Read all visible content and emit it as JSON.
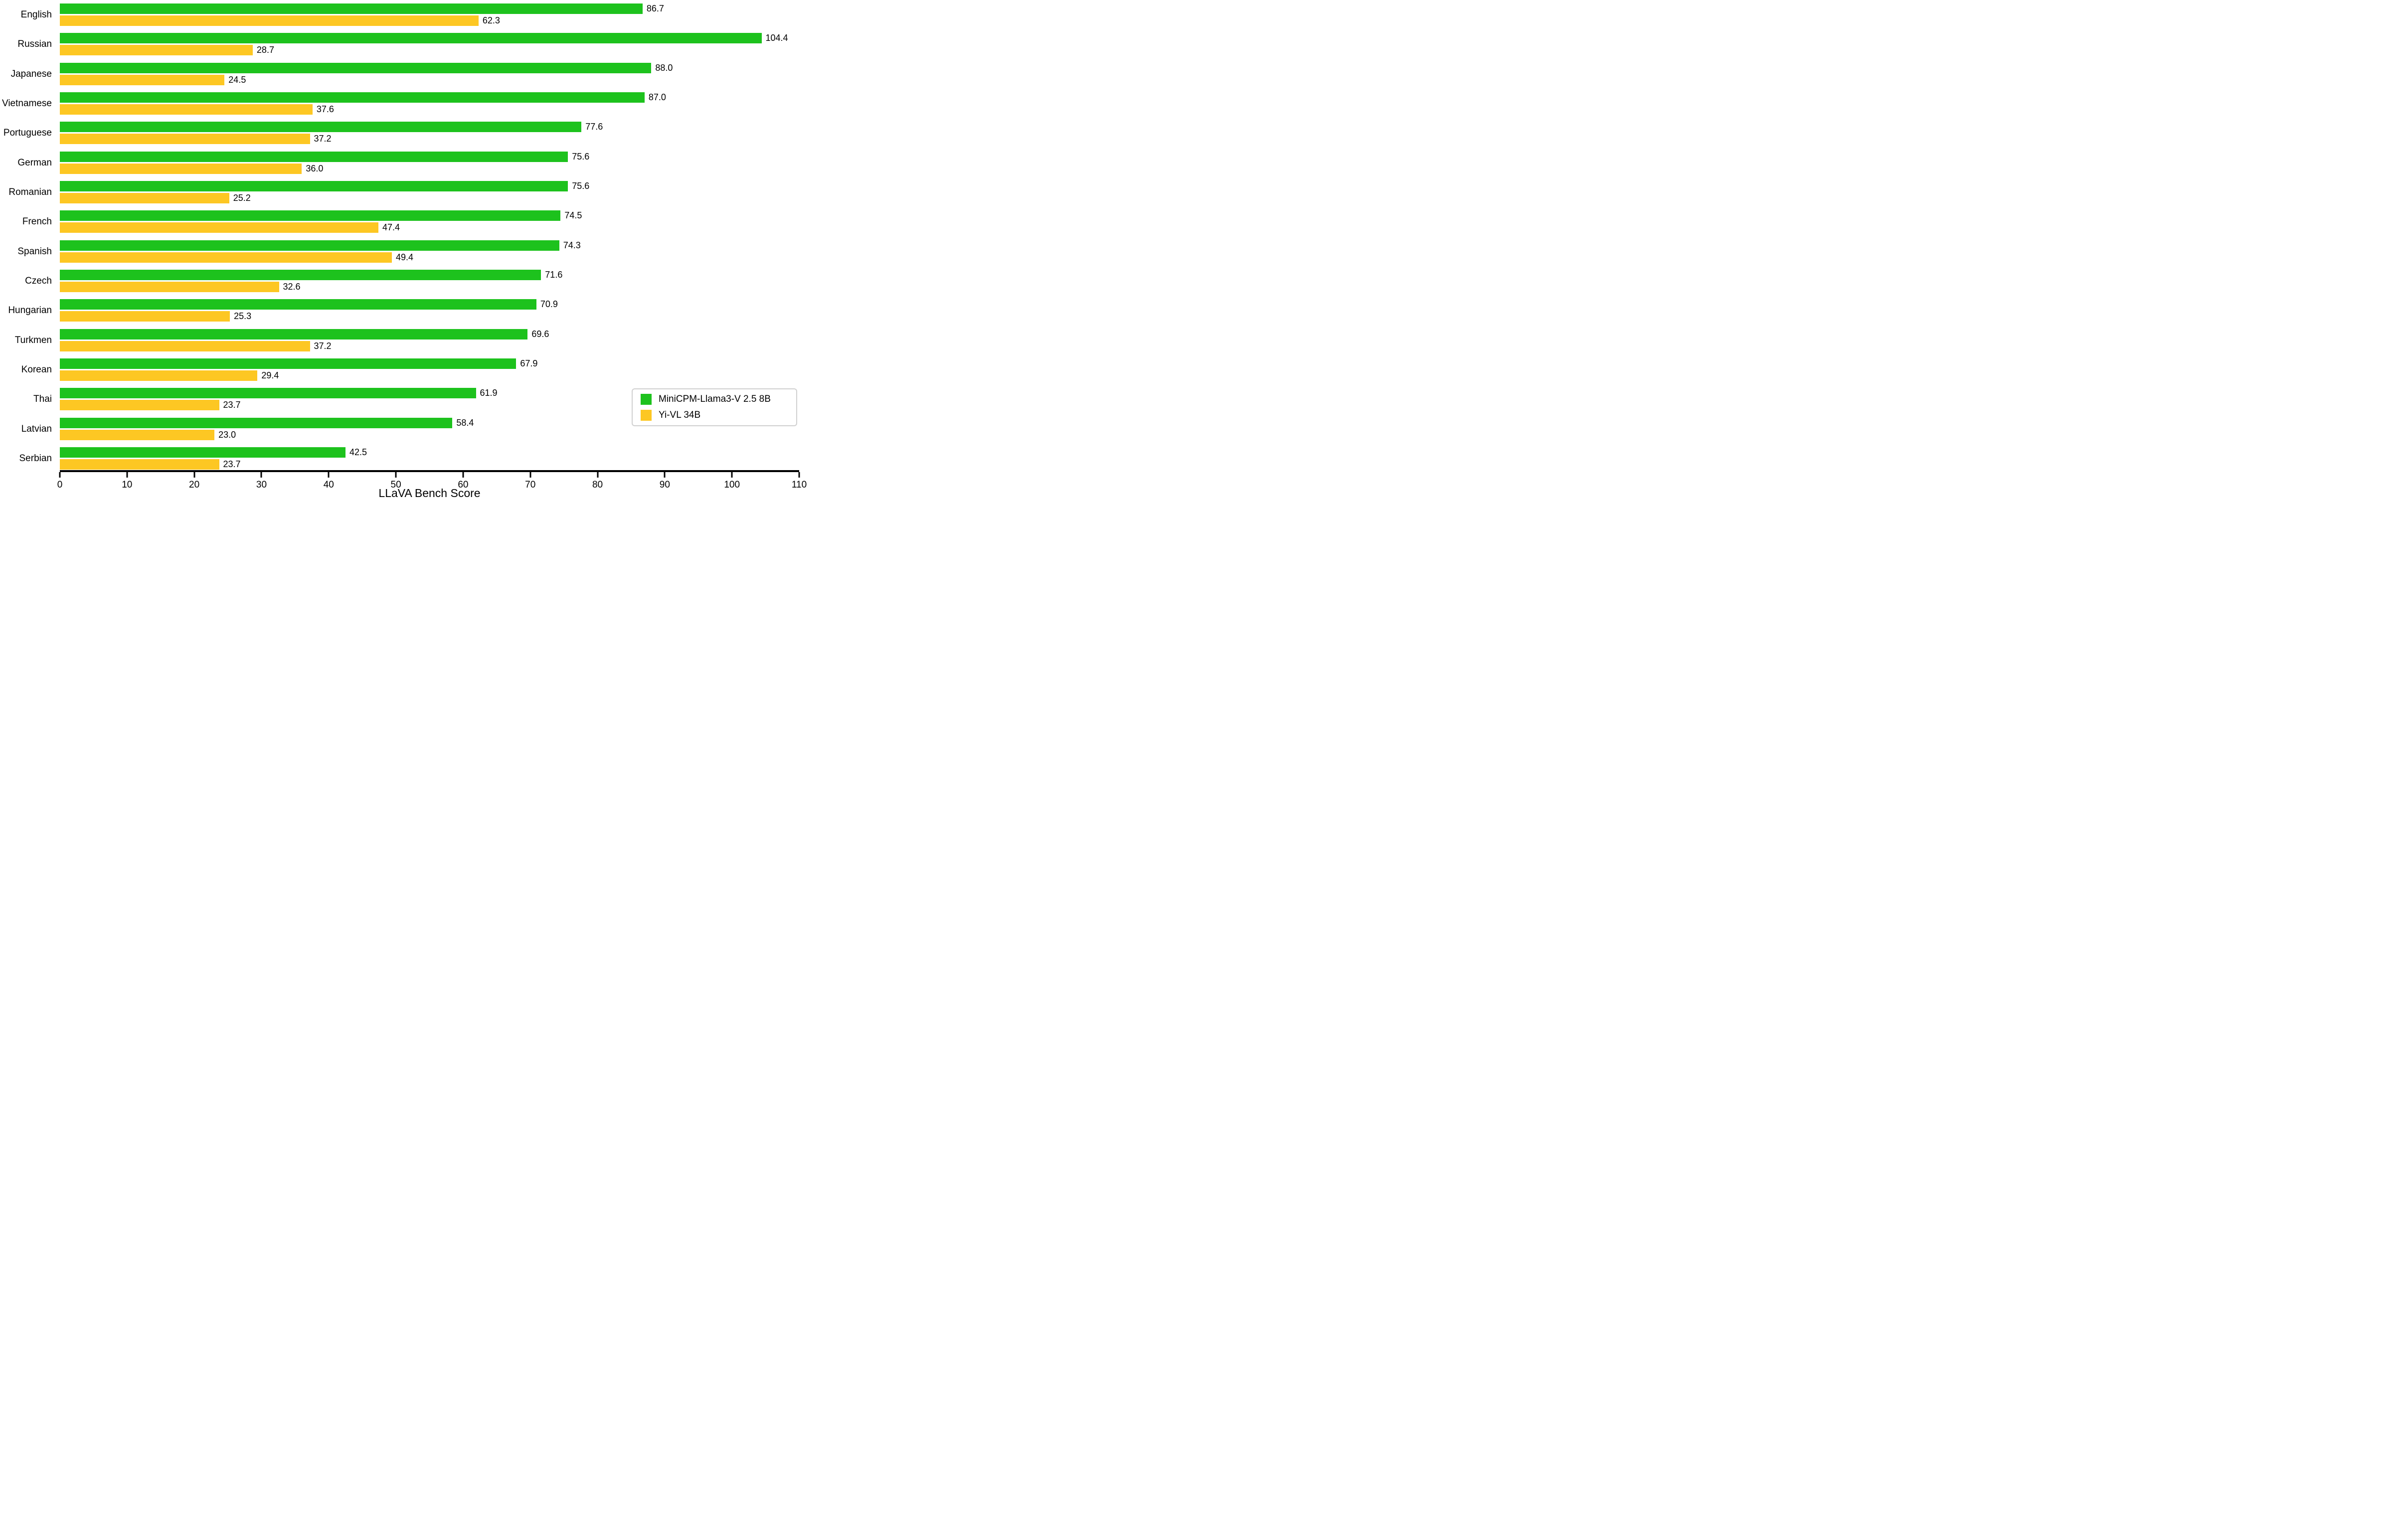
{
  "chart_data": {
    "type": "bar",
    "orientation": "horizontal",
    "title": "",
    "xlabel": "LLaVA Bench Score",
    "ylabel": "",
    "xlim": [
      0,
      110
    ],
    "xticks": [
      0,
      10,
      20,
      30,
      40,
      50,
      60,
      70,
      80,
      90,
      100,
      110
    ],
    "grid": false,
    "legend_position": "lower right",
    "value_label_decimals": 1,
    "categories": [
      "English",
      "Russian",
      "Japanese",
      "Vietnamese",
      "Portuguese",
      "German",
      "Romanian",
      "French",
      "Spanish",
      "Czech",
      "Hungarian",
      "Turkmen",
      "Korean",
      "Thai",
      "Latvian",
      "Serbian"
    ],
    "series": [
      {
        "name": "MiniCPM-Llama3-V 2.5 8B",
        "color": "#1dc21d",
        "values": [
          86.7,
          104.4,
          88.0,
          87.0,
          77.6,
          75.6,
          75.6,
          74.5,
          74.3,
          71.6,
          70.9,
          69.6,
          67.9,
          61.9,
          58.4,
          42.5
        ]
      },
      {
        "name": "Yi-VL 34B",
        "color": "#fdc723",
        "values": [
          62.3,
          28.7,
          24.5,
          37.6,
          37.2,
          36.0,
          25.2,
          47.4,
          49.4,
          32.6,
          25.3,
          37.2,
          29.4,
          23.7,
          23.0,
          23.7
        ]
      }
    ],
    "axis_color": "#000000",
    "background_color": "#ffffff",
    "legend_border_color": "#d0d0d0"
  }
}
